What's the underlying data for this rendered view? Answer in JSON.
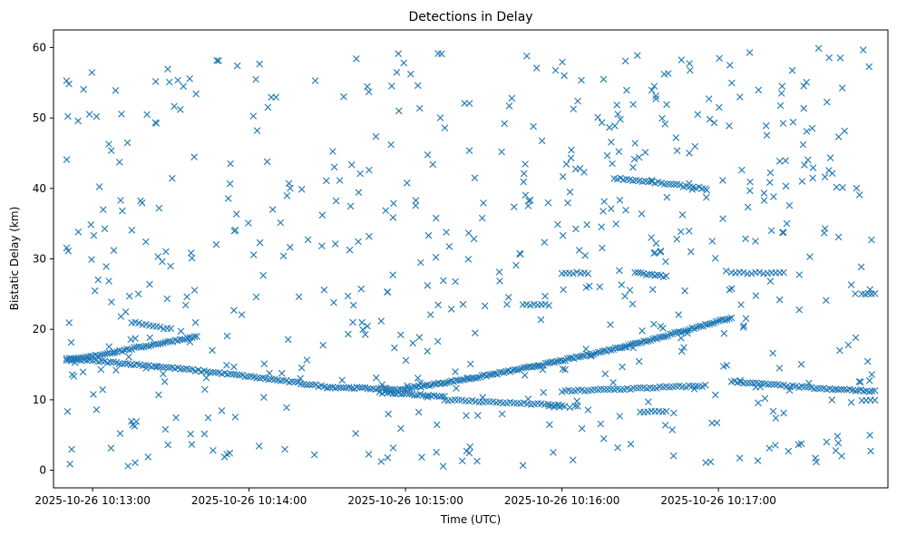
{
  "chart_data": {
    "type": "scatter",
    "title": "Detections in Delay",
    "xlabel": "Time (UTC)",
    "ylabel": "Bistatic Delay (km)",
    "x_range": [
      "2025-10-26 10:12:45",
      "2025-10-26 10:18:05"
    ],
    "ylim": [
      -2.5,
      62.5
    ],
    "x_ticks": [
      "2025-10-26 10:13:00",
      "2025-10-26 10:14:00",
      "2025-10-26 10:15:00",
      "2025-10-26 10:16:00",
      "2025-10-26 10:17:00"
    ],
    "y_ticks": [
      0,
      10,
      20,
      30,
      40,
      50,
      60
    ],
    "grid": false,
    "legend": "none",
    "marker": "x",
    "marker_color": "#1f77b4",
    "tracks": [
      {
        "x_start": "2025-10-26 10:12:50",
        "x_end": "2025-10-26 10:14:30",
        "y_start": 15.8,
        "y_end": 11.8,
        "points": 90,
        "shape": "curve"
      },
      {
        "x_start": "2025-10-26 10:14:30",
        "x_end": "2025-10-26 10:15:00",
        "y_start": 11.8,
        "y_end": 11.4,
        "points": 30,
        "shape": "curve"
      },
      {
        "x_start": "2025-10-26 10:15:00",
        "x_end": "2025-10-26 10:17:05",
        "y_start": 11.6,
        "y_end": 21.7,
        "points": 150,
        "shape": "curve"
      },
      {
        "x_start": "2025-10-26 10:12:50",
        "x_end": "2025-10-26 10:13:40",
        "y_start": 15.5,
        "y_end": 19.0,
        "points": 55,
        "shape": "line"
      },
      {
        "x_start": "2025-10-26 10:13:15",
        "x_end": "2025-10-26 10:13:30",
        "y_start": 21.0,
        "y_end": 20.0,
        "points": 12,
        "shape": "line"
      },
      {
        "x_start": "2025-10-26 10:14:50",
        "x_end": "2025-10-26 10:15:15",
        "y_start": 11.0,
        "y_end": 10.5,
        "points": 25,
        "shape": "line"
      },
      {
        "x_start": "2025-10-26 10:15:15",
        "x_end": "2025-10-26 10:16:00",
        "y_start": 10.0,
        "y_end": 9.2,
        "points": 35,
        "shape": "line"
      },
      {
        "x_start": "2025-10-26 10:16:00",
        "x_end": "2025-10-26 10:16:55",
        "y_start": 11.2,
        "y_end": 12.0,
        "points": 45,
        "shape": "line"
      },
      {
        "x_start": "2025-10-26 10:17:05",
        "x_end": "2025-10-26 10:17:45",
        "y_start": 12.6,
        "y_end": 11.4,
        "points": 35,
        "shape": "line"
      },
      {
        "x_start": "2025-10-26 10:17:45",
        "x_end": "2025-10-26 10:18:00",
        "y_start": 11.5,
        "y_end": 11.2,
        "points": 15,
        "shape": "line"
      },
      {
        "x_start": "2025-10-26 10:16:20",
        "x_end": "2025-10-26 10:16:55",
        "y_start": 41.5,
        "y_end": 40.0,
        "points": 30,
        "shape": "line"
      },
      {
        "x_start": "2025-10-26 10:16:28",
        "x_end": "2025-10-26 10:16:40",
        "y_start": 28.0,
        "y_end": 27.5,
        "points": 12,
        "shape": "line"
      },
      {
        "x_start": "2025-10-26 10:17:05",
        "x_end": "2025-10-26 10:17:25",
        "y_start": 28.0,
        "y_end": 28.0,
        "points": 14,
        "shape": "line"
      },
      {
        "x_start": "2025-10-26 10:16:00",
        "x_end": "2025-10-26 10:16:10",
        "y_start": 28.0,
        "y_end": 28.0,
        "points": 8,
        "shape": "line"
      },
      {
        "x_start": "2025-10-26 10:15:45",
        "x_end": "2025-10-26 10:15:55",
        "y_start": 23.5,
        "y_end": 23.5,
        "points": 8,
        "shape": "line"
      },
      {
        "x_start": "2025-10-26 10:16:30",
        "x_end": "2025-10-26 10:16:40",
        "y_start": 8.3,
        "y_end": 8.3,
        "points": 8,
        "shape": "line"
      },
      {
        "x_start": "2025-10-26 10:15:55",
        "x_end": "2025-10-26 10:16:05",
        "y_start": 9.0,
        "y_end": 9.0,
        "points": 6,
        "shape": "line"
      },
      {
        "x_start": "2025-10-26 10:17:55",
        "x_end": "2025-10-26 10:18:00",
        "y_start": 25.0,
        "y_end": 25.0,
        "points": 5,
        "shape": "line"
      },
      {
        "x_start": "2025-10-26 10:17:55",
        "x_end": "2025-10-26 10:18:00",
        "y_start": 10.0,
        "y_end": 10.0,
        "points": 4,
        "shape": "line"
      }
    ],
    "clutter": {
      "x_start": "2025-10-26 10:12:50",
      "x_end": "2025-10-26 10:18:00",
      "y_min": 0.5,
      "y_max": 60,
      "points": 600
    }
  }
}
